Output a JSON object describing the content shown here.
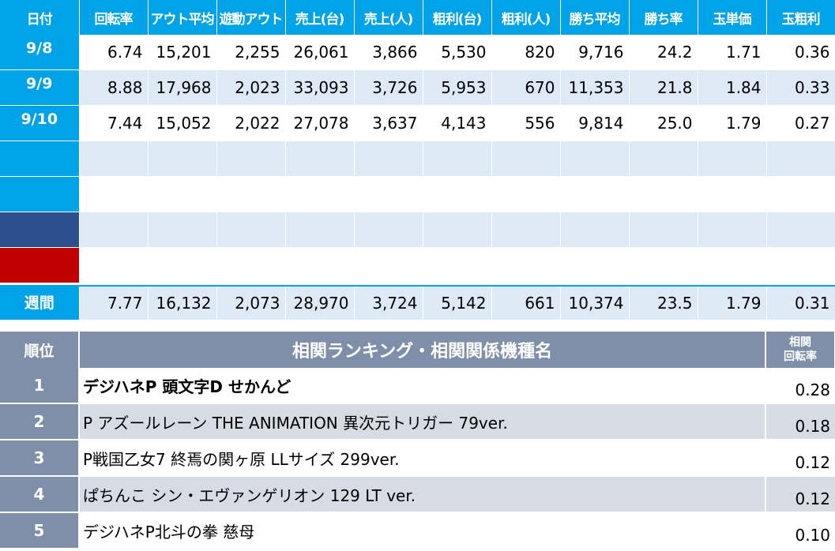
{
  "stats": {
    "headers": [
      "日付",
      "回転率",
      "アウト平均",
      "遊動アウト",
      "売上(台)",
      "売上(人)",
      "粗利(台)",
      "粗利(人)",
      "勝ち平均",
      "勝ち率",
      "玉単価",
      "玉粗利"
    ],
    "rows": [
      {
        "date": "9/8",
        "values": [
          "6.74",
          "15,201",
          "2,255",
          "26,061",
          "3,866",
          "5,530",
          "820",
          "9,716",
          "24.2",
          "1.71",
          "0.36"
        ]
      },
      {
        "date": "9/9",
        "values": [
          "8.88",
          "17,968",
          "2,023",
          "33,093",
          "3,726",
          "5,953",
          "670",
          "11,353",
          "21.8",
          "1.84",
          "0.33"
        ]
      },
      {
        "date": "9/10",
        "values": [
          "7.44",
          "15,052",
          "2,022",
          "27,078",
          "3,637",
          "4,143",
          "556",
          "9,814",
          "25.0",
          "1.79",
          "0.27"
        ]
      },
      {
        "date": "",
        "values": [
          "",
          "",
          "",
          "",
          "",
          "",
          "",
          "",
          "",
          "",
          ""
        ]
      },
      {
        "date": "",
        "values": [
          "",
          "",
          "",
          "",
          "",
          "",
          "",
          "",
          "",
          "",
          ""
        ]
      },
      {
        "date": "",
        "values": [
          "",
          "",
          "",
          "",
          "",
          "",
          "",
          "",
          "",
          "",
          ""
        ]
      },
      {
        "date": "",
        "values": [
          "",
          "",
          "",
          "",
          "",
          "",
          "",
          "",
          "",
          "",
          ""
        ]
      }
    ],
    "weekly": {
      "label": "週間",
      "values": [
        "7.77",
        "16,132",
        "2,073",
        "28,970",
        "3,724",
        "5,142",
        "661",
        "10,374",
        "23.5",
        "1.79",
        "0.31"
      ]
    }
  },
  "ranking": {
    "header_rank": "順位",
    "header_name": "相関ランキング・相関関係機種名",
    "header_corr_line1": "相関",
    "header_corr_line2": "回転率",
    "items": [
      {
        "rank": "1",
        "name": "デジハネP 頭文字D せかんど",
        "corr": "0.28"
      },
      {
        "rank": "2",
        "name": "P アズールレーン THE ANIMATION 異次元トリガー 79ver.",
        "corr": "0.18"
      },
      {
        "rank": "3",
        "name": "P戦国乙女7 終焉の関ヶ原 LLサイズ 299ver.",
        "corr": "0.12"
      },
      {
        "rank": "4",
        "name": "ぱちんこ シン・エヴァンゲリオン 129 LT ver.",
        "corr": "0.12"
      },
      {
        "rank": "5",
        "name": "デジハネP北斗の拳 慈母",
        "corr": "0.10"
      }
    ]
  },
  "colors": {
    "header_blue": "#00a2e8",
    "row_alt": "#dde9f5",
    "navy": "#2e4f8f",
    "red": "#c00000",
    "rank_header": "#7f8fa9",
    "rank_alt": "#d6dce4"
  }
}
